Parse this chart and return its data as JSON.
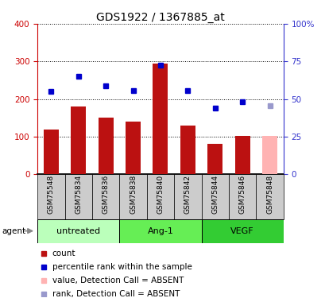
{
  "title": "GDS1922 / 1367885_at",
  "samples": [
    "GSM75548",
    "GSM75834",
    "GSM75836",
    "GSM75838",
    "GSM75840",
    "GSM75842",
    "GSM75844",
    "GSM75846",
    "GSM75848"
  ],
  "bar_values": [
    120,
    180,
    150,
    140,
    295,
    130,
    82,
    102,
    102
  ],
  "bar_colors": [
    "#bb1111",
    "#bb1111",
    "#bb1111",
    "#bb1111",
    "#bb1111",
    "#bb1111",
    "#bb1111",
    "#bb1111",
    "#ffb3b3"
  ],
  "dot_values": [
    55,
    65,
    59,
    55.5,
    72.5,
    55.5,
    44,
    48,
    45.5
  ],
  "dot_colors": [
    "#0000cc",
    "#0000cc",
    "#0000cc",
    "#0000cc",
    "#0000cc",
    "#0000cc",
    "#0000cc",
    "#0000cc",
    "#9999cc"
  ],
  "ylim_left": [
    0,
    400
  ],
  "ylim_right": [
    0,
    100
  ],
  "yticks_left": [
    0,
    100,
    200,
    300,
    400
  ],
  "yticks_right": [
    0,
    25,
    50,
    75,
    100
  ],
  "ylabel_left_color": "#cc0000",
  "ylabel_right_color": "#3333cc",
  "groups": [
    {
      "label": "untreated",
      "indices": [
        0,
        1,
        2
      ],
      "color_light": "#ccffcc",
      "color_bright": "#55dd55"
    },
    {
      "label": "Ang-1",
      "indices": [
        3,
        4,
        5
      ],
      "color_light": "#ccffcc",
      "color_bright": "#55dd55"
    },
    {
      "label": "VEGF",
      "indices": [
        6,
        7,
        8
      ],
      "color_light": "#ccffcc",
      "color_bright": "#33cc33"
    }
  ],
  "group_colors": [
    "#bbffbb",
    "#66ee55",
    "#33cc33"
  ],
  "agent_label": "agent",
  "title_fontsize": 10,
  "tick_fontsize": 7.5,
  "sample_fontsize": 6.5,
  "group_fontsize": 8,
  "legend_fontsize": 7.5,
  "bar_width": 0.55,
  "legend_items": [
    {
      "color": "#bb1111",
      "label": "count"
    },
    {
      "color": "#0000cc",
      "label": "percentile rank within the sample"
    },
    {
      "color": "#ffb3b3",
      "label": "value, Detection Call = ABSENT"
    },
    {
      "color": "#9999cc",
      "label": "rank, Detection Call = ABSENT"
    }
  ]
}
